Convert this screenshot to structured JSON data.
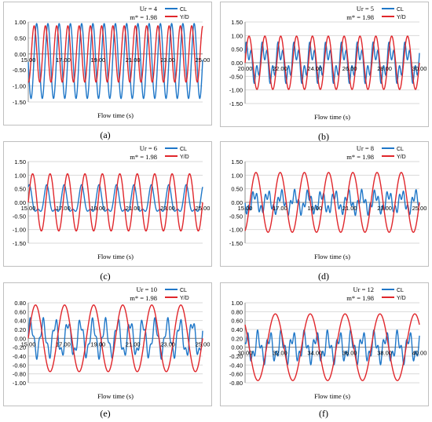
{
  "colors": {
    "cl": "#1f77c8",
    "yd": "#e0262b",
    "grid": "#d9d9d9",
    "axis": "#8c8c8c"
  },
  "chart_data": [
    {
      "id": "a",
      "type": "line",
      "caption": "(a)",
      "annotation_line1": "Ur = 4",
      "annotation_line2": "m* = 1.98",
      "xlabel": "Flow time (s)",
      "xlim": [
        15,
        25
      ],
      "ylim": [
        -1.5,
        1.0
      ],
      "yticks": [
        1.0,
        0.5,
        0.0,
        -0.5,
        -1.0,
        -1.5
      ],
      "ytick_labels": [
        "1.00",
        "0.50",
        "0.00",
        "-0.50",
        "-1.00",
        "-1.50"
      ],
      "xticks": [
        15,
        17,
        19,
        21,
        23,
        25
      ],
      "xtick_labels": [
        "15.00",
        "17.00",
        "19.00",
        "21.00",
        "23.00",
        "25.00"
      ],
      "series": [
        {
          "name": "CL",
          "freq": 1.55,
          "amp": 1.17,
          "offset": -0.22,
          "phase": 1.6,
          "h2": 0.0,
          "f2": 0
        },
        {
          "name": "Y/D",
          "freq": 1.55,
          "amp": 0.88,
          "offset": 0.0,
          "phase": 3.0,
          "h2": 0.0,
          "f2": 0
        }
      ]
    },
    {
      "id": "b",
      "type": "line",
      "caption": "(b)",
      "annotation_line1": "Ur = 5",
      "annotation_line2": "m* = 1.98",
      "xlabel": "Flow time (s)",
      "xlim": [
        20,
        30
      ],
      "ylim": [
        -1.5,
        1.5
      ],
      "yticks": [
        1.5,
        1.0,
        0.5,
        0.0,
        -0.5,
        -1.0,
        -1.5
      ],
      "ytick_labels": [
        "1.50",
        "1.00",
        "0.50",
        "0.00",
        "-0.50",
        "-1.00",
        "-1.50"
      ],
      "xticks": [
        20,
        22,
        24,
        26,
        28,
        30
      ],
      "xtick_labels": [
        "20.00",
        "22.00",
        "24.00",
        "26.00",
        "28.00",
        "30.00"
      ],
      "series": [
        {
          "name": "CL",
          "freq": 1.1,
          "amp": 0.5,
          "offset": 0.0,
          "phase": 0.5,
          "h2": 0.35,
          "f2": 3
        },
        {
          "name": "Y/D",
          "freq": 1.1,
          "amp": 0.98,
          "offset": 0.0,
          "phase": 0.0,
          "h2": 0.0,
          "f2": 0
        }
      ]
    },
    {
      "id": "c",
      "type": "line",
      "caption": "(c)",
      "annotation_line1": "Ur = 6",
      "annotation_line2": "m* = 1.98",
      "xlabel": "Flow time (s)",
      "xlim": [
        15,
        25
      ],
      "ylim": [
        -1.5,
        1.5
      ],
      "yticks": [
        1.5,
        1.0,
        0.5,
        0.0,
        -0.5,
        -1.0,
        -1.5
      ],
      "ytick_labels": [
        "1.50",
        "1.00",
        "0.50",
        "0.00",
        "-0.50",
        "-1.00",
        "-1.50"
      ],
      "xticks": [
        15,
        17,
        19,
        21,
        23,
        25
      ],
      "xtick_labels": [
        "15.00",
        "17.00",
        "19.00",
        "21.00",
        "23.00",
        "25.00"
      ],
      "series": [
        {
          "name": "CL",
          "freq": 1.0,
          "amp": 0.45,
          "offset": 0.0,
          "phase": 1.2,
          "h2": 0.2,
          "f2": 2
        },
        {
          "name": "Y/D",
          "freq": 1.0,
          "amp": 1.05,
          "offset": 0.0,
          "phase": 0.0,
          "h2": 0.0,
          "f2": 0
        }
      ]
    },
    {
      "id": "d",
      "type": "line",
      "caption": "(d)",
      "annotation_line1": "Ur = 8",
      "annotation_line2": "m* = 1.98",
      "xlabel": "Flow time (s)",
      "xlim": [
        15,
        25
      ],
      "ylim": [
        -1.5,
        1.5
      ],
      "yticks": [
        1.5,
        1.0,
        0.5,
        0.0,
        -0.5,
        -1.0,
        -1.5
      ],
      "ytick_labels": [
        "1.50",
        "1.00",
        "0.50",
        "0.00",
        "-0.50",
        "-1.00",
        "-1.50"
      ],
      "xticks": [
        15,
        17,
        19,
        21,
        23,
        25
      ],
      "xtick_labels": [
        "15.00",
        "17.00",
        "19.00",
        "21.00",
        "23.00",
        "25.00"
      ],
      "series": [
        {
          "name": "CL",
          "freq": 1.3,
          "amp": 0.3,
          "offset": 0.0,
          "phase": 0.3,
          "h2": 0.18,
          "f2": 3.2
        },
        {
          "name": "Y/D",
          "freq": 0.72,
          "amp": 1.1,
          "offset": 0.0,
          "phase": 0.0,
          "h2": 0.0,
          "f2": 0
        }
      ]
    },
    {
      "id": "e",
      "type": "line",
      "caption": "(e)",
      "annotation_line1": "Ur = 10",
      "annotation_line2": "m* = 1.98",
      "xlabel": "Flow time (s)",
      "xlim": [
        15,
        25
      ],
      "ylim": [
        -1.0,
        0.8
      ],
      "yticks": [
        0.8,
        0.6,
        0.4,
        0.2,
        0.0,
        -0.2,
        -0.4,
        -0.6,
        -0.8,
        -1.0
      ],
      "ytick_labels": [
        "0.80",
        "0.60",
        "0.40",
        "0.20",
        "0.00",
        "-0.20",
        "-0.40",
        "-0.60",
        "-0.80",
        "-1.00"
      ],
      "xticks": [
        15,
        17,
        19,
        21,
        23,
        25
      ],
      "xtick_labels": [
        "15.00",
        "17.00",
        "19.00",
        "21.00",
        "23.00",
        "25.00"
      ],
      "series": [
        {
          "name": "CL",
          "freq": 1.4,
          "amp": 0.35,
          "offset": 0.0,
          "phase": 0.4,
          "h2": 0.12,
          "f2": 2.8
        },
        {
          "name": "Y/D",
          "freq": 0.6,
          "amp": 0.75,
          "offset": 0.0,
          "phase": 0.0,
          "h2": 0.0,
          "f2": 0
        }
      ]
    },
    {
      "id": "f",
      "type": "line",
      "caption": "(f)",
      "annotation_line1": "Ur = 12",
      "annotation_line2": "m* = 1.98",
      "xlabel": "Flow time (s)",
      "xlim": [
        30,
        40
      ],
      "ylim": [
        -0.8,
        1.0
      ],
      "yticks": [
        1.0,
        0.8,
        0.6,
        0.4,
        0.2,
        0.0,
        -0.2,
        -0.4,
        -0.6,
        -0.8
      ],
      "ytick_labels": [
        "1.00",
        "0.80",
        "0.60",
        "0.40",
        "0.20",
        "0.00",
        "-0.20",
        "-0.40",
        "-0.60",
        "-0.80"
      ],
      "xticks": [
        30,
        32,
        34,
        36,
        38,
        40
      ],
      "xtick_labels": [
        "30.00",
        "32.00",
        "34.00",
        "36.00",
        "38.00",
        "40.00"
      ],
      "series": [
        {
          "name": "CL",
          "freq": 1.5,
          "amp": 0.25,
          "offset": 0.0,
          "phase": 0.8,
          "h2": 0.15,
          "f2": 2.5
        },
        {
          "name": "Y/D",
          "freq": 0.5,
          "amp": 0.75,
          "offset": 0.0,
          "phase": 2.4,
          "h2": 0.0,
          "f2": 0
        }
      ]
    }
  ]
}
